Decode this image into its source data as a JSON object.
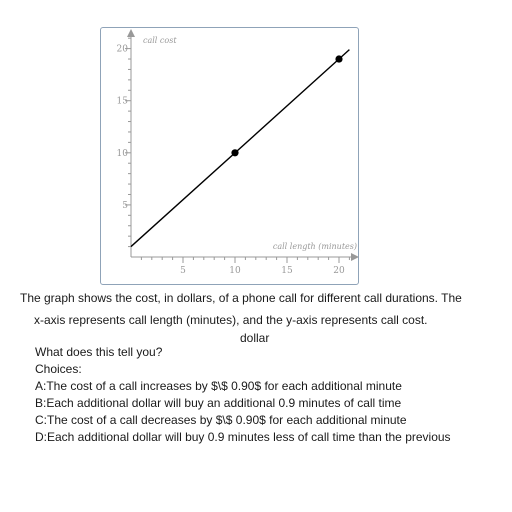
{
  "chart_data": {
    "type": "line",
    "xlabel": "call length (minutes)",
    "ylabel": "call cost",
    "xlim": [
      0,
      21
    ],
    "ylim": [
      0,
      21
    ],
    "x_ticks": [
      5,
      10,
      15,
      20
    ],
    "y_ticks": [
      5,
      10,
      15,
      20
    ],
    "grid": false,
    "series": [
      {
        "x": [
          0,
          21
        ],
        "y": [
          1.0,
          19.9
        ]
      }
    ],
    "points": [
      {
        "x": 10,
        "y": 10
      },
      {
        "x": 20,
        "y": 19
      }
    ],
    "line_color": "#000000",
    "axis_color": "#999999"
  },
  "text": {
    "description_line1": "The graph shows the cost, in dollars, of a phone call for different call durations. The",
    "description_line2": "x-axis represents call length (minutes), and the y-axis represents call cost.",
    "unit_word": "dollar",
    "question": "What does this tell you?",
    "choices_label": "Choices:",
    "choices": [
      "A:The cost of a call increases by $\\$ 0.90$ for each additional minute",
      "B:Each additional dollar will buy an additional 0.9 minutes of call time",
      "C:The cost of a call decreases by $\\$ 0.90$ for each additional minute",
      "D:Each additional dollar will buy 0.9 minutes less of call time than the previous"
    ]
  }
}
